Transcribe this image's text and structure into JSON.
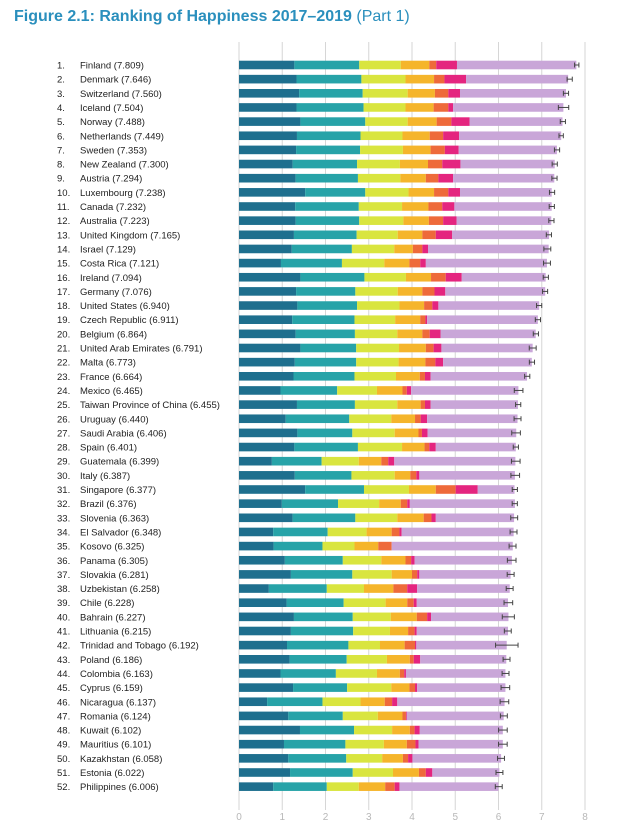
{
  "title": {
    "main": "Figure 2.1: Ranking of Happiness 2017–2019",
    "part": "(Part 1)"
  },
  "colors": {
    "accent": "#2a8fbd",
    "segments": [
      "#1e6f8e",
      "#27a3a8",
      "#d9e53f",
      "#f5b52b",
      "#ee6a3a",
      "#e4257f",
      "#c9a6d8"
    ],
    "gridline": "#d6d6d6",
    "axis_tick": "#b8b8b8",
    "whisker": "#444444",
    "label": "#222222"
  },
  "chart_data": {
    "type": "bar",
    "stacked": true,
    "orientation": "horizontal",
    "title": "Figure 2.1: Ranking of Happiness 2017–2019 (Part 1)",
    "xlim": [
      0,
      8
    ],
    "xticks": [
      "0",
      "1",
      "2",
      "3",
      "4",
      "5",
      "6",
      "7",
      "8"
    ],
    "grid": true,
    "categories": [
      {
        "rank": "1.",
        "name": "Finland (7.809)"
      },
      {
        "rank": "2.",
        "name": "Denmark (7.646)"
      },
      {
        "rank": "3.",
        "name": "Switzerland (7.560)"
      },
      {
        "rank": "4.",
        "name": "Iceland (7.504)"
      },
      {
        "rank": "5.",
        "name": "Norway (7.488)"
      },
      {
        "rank": "6.",
        "name": "Netherlands (7.449)"
      },
      {
        "rank": "7.",
        "name": "Sweden (7.353)"
      },
      {
        "rank": "8.",
        "name": "New Zealand (7.300)"
      },
      {
        "rank": "9.",
        "name": "Austria (7.294)"
      },
      {
        "rank": "10.",
        "name": "Luxembourg (7.238)"
      },
      {
        "rank": "11.",
        "name": "Canada (7.232)"
      },
      {
        "rank": "12.",
        "name": "Australia (7.223)"
      },
      {
        "rank": "13.",
        "name": "United Kingdom (7.165)"
      },
      {
        "rank": "14.",
        "name": "Israel (7.129)"
      },
      {
        "rank": "15.",
        "name": "Costa Rica (7.121)"
      },
      {
        "rank": "16.",
        "name": "Ireland (7.094)"
      },
      {
        "rank": "17.",
        "name": "Germany (7.076)"
      },
      {
        "rank": "18.",
        "name": "United States (6.940)"
      },
      {
        "rank": "19.",
        "name": "Czech Republic (6.911)"
      },
      {
        "rank": "20.",
        "name": "Belgium (6.864)"
      },
      {
        "rank": "21.",
        "name": "United Arab Emirates (6.791)"
      },
      {
        "rank": "22.",
        "name": "Malta (6.773)"
      },
      {
        "rank": "23.",
        "name": "France (6.664)"
      },
      {
        "rank": "24.",
        "name": "Mexico (6.465)"
      },
      {
        "rank": "25.",
        "name": "Taiwan Province of China (6.455)"
      },
      {
        "rank": "26.",
        "name": "Uruguay (6.440)"
      },
      {
        "rank": "27.",
        "name": "Saudi Arabia (6.406)"
      },
      {
        "rank": "28.",
        "name": "Spain (6.401)"
      },
      {
        "rank": "29.",
        "name": "Guatemala (6.399)"
      },
      {
        "rank": "30.",
        "name": "Italy (6.387)"
      },
      {
        "rank": "31.",
        "name": "Singapore (6.377)"
      },
      {
        "rank": "32.",
        "name": "Brazil (6.376)"
      },
      {
        "rank": "33.",
        "name": "Slovenia (6.363)"
      },
      {
        "rank": "34.",
        "name": "El Salvador (6.348)"
      },
      {
        "rank": "35.",
        "name": "Kosovo (6.325)"
      },
      {
        "rank": "36.",
        "name": "Panama (6.305)"
      },
      {
        "rank": "37.",
        "name": "Slovakia (6.281)"
      },
      {
        "rank": "38.",
        "name": "Uzbekistan (6.258)"
      },
      {
        "rank": "39.",
        "name": "Chile (6.228)"
      },
      {
        "rank": "40.",
        "name": "Bahrain (6.227)"
      },
      {
        "rank": "41.",
        "name": "Lithuania (6.215)"
      },
      {
        "rank": "42.",
        "name": "Trinidad and Tobago (6.192)"
      },
      {
        "rank": "43.",
        "name": "Poland (6.186)"
      },
      {
        "rank": "44.",
        "name": "Colombia (6.163)"
      },
      {
        "rank": "45.",
        "name": "Cyprus (6.159)"
      },
      {
        "rank": "46.",
        "name": "Nicaragua (6.137)"
      },
      {
        "rank": "47.",
        "name": "Romania (6.124)"
      },
      {
        "rank": "48.",
        "name": "Kuwait (6.102)"
      },
      {
        "rank": "49.",
        "name": "Mauritius (6.101)"
      },
      {
        "rank": "50.",
        "name": "Kazakhstan (6.058)"
      },
      {
        "rank": "51.",
        "name": "Estonia (6.022)"
      },
      {
        "rank": "52.",
        "name": "Philippines (6.006)"
      }
    ],
    "scores": [
      7.809,
      7.646,
      7.56,
      7.504,
      7.488,
      7.449,
      7.353,
      7.3,
      7.294,
      7.238,
      7.232,
      7.223,
      7.165,
      7.129,
      7.121,
      7.094,
      7.076,
      6.94,
      6.911,
      6.864,
      6.791,
      6.773,
      6.664,
      6.465,
      6.455,
      6.44,
      6.406,
      6.401,
      6.399,
      6.387,
      6.377,
      6.376,
      6.363,
      6.348,
      6.325,
      6.305,
      6.281,
      6.258,
      6.228,
      6.227,
      6.215,
      6.192,
      6.186,
      6.163,
      6.159,
      6.137,
      6.124,
      6.102,
      6.101,
      6.058,
      6.022,
      6.006
    ],
    "segments": [
      [
        1.28,
        1.5,
        0.96,
        0.66,
        0.16,
        0.48,
        2.76
      ],
      [
        1.33,
        1.5,
        1.02,
        0.66,
        0.24,
        0.5,
        2.36
      ],
      [
        1.39,
        1.47,
        1.04,
        0.63,
        0.31,
        0.27,
        2.45
      ],
      [
        1.33,
        1.55,
        0.97,
        0.65,
        0.34,
        0.11,
        2.55
      ],
      [
        1.42,
        1.5,
        0.98,
        0.67,
        0.34,
        0.42,
        2.15
      ],
      [
        1.34,
        1.47,
        0.97,
        0.63,
        0.31,
        0.37,
        2.36
      ],
      [
        1.32,
        1.48,
        0.99,
        0.64,
        0.33,
        0.32,
        2.27
      ],
      [
        1.24,
        1.49,
        0.99,
        0.65,
        0.33,
        0.42,
        2.18
      ],
      [
        1.31,
        1.44,
        0.98,
        0.59,
        0.29,
        0.34,
        2.34
      ],
      [
        1.53,
        1.39,
        1.0,
        0.59,
        0.33,
        0.27,
        2.12
      ],
      [
        1.3,
        1.47,
        1.0,
        0.61,
        0.32,
        0.28,
        2.25
      ],
      [
        1.31,
        1.47,
        1.02,
        0.59,
        0.33,
        0.31,
        2.19
      ],
      [
        1.27,
        1.45,
        0.95,
        0.57,
        0.31,
        0.38,
        2.24
      ],
      [
        1.22,
        1.39,
        0.98,
        0.43,
        0.22,
        0.13,
        2.79
      ],
      [
        0.97,
        1.41,
        0.98,
        0.58,
        0.25,
        0.13,
        2.8
      ],
      [
        1.42,
        1.48,
        0.96,
        0.58,
        0.34,
        0.37,
        1.94
      ],
      [
        1.32,
        1.37,
        0.98,
        0.57,
        0.28,
        0.25,
        2.31
      ],
      [
        1.35,
        1.38,
        0.98,
        0.57,
        0.19,
        0.14,
        2.33
      ],
      [
        1.23,
        1.44,
        0.94,
        0.58,
        0.12,
        0.04,
        2.56
      ],
      [
        1.31,
        1.37,
        0.98,
        0.58,
        0.17,
        0.25,
        2.2
      ],
      [
        1.42,
        1.29,
        0.99,
        0.62,
        0.18,
        0.18,
        2.11
      ],
      [
        1.29,
        1.42,
        0.98,
        0.62,
        0.23,
        0.18,
        2.05
      ],
      [
        1.26,
        1.41,
        0.96,
        0.55,
        0.12,
        0.13,
        2.23
      ],
      [
        0.96,
        1.31,
        0.92,
        0.59,
        0.1,
        0.1,
        2.48
      ],
      [
        1.34,
        1.34,
        0.98,
        0.54,
        0.1,
        0.13,
        2.02
      ],
      [
        1.08,
        1.47,
        0.97,
        0.55,
        0.13,
        0.15,
        2.09
      ],
      [
        1.35,
        1.27,
        0.98,
        0.55,
        0.08,
        0.13,
        2.05
      ],
      [
        1.28,
        1.47,
        1.02,
        0.52,
        0.11,
        0.15,
        1.85
      ],
      [
        0.76,
        1.15,
        0.86,
        0.52,
        0.16,
        0.14,
        2.8
      ],
      [
        1.29,
        1.31,
        1.0,
        0.36,
        0.14,
        0.07,
        2.21
      ],
      [
        1.53,
        1.36,
        1.04,
        0.62,
        0.46,
        0.51,
        0.85
      ],
      [
        0.99,
        1.3,
        0.95,
        0.5,
        0.15,
        0.06,
        2.43
      ],
      [
        1.24,
        1.45,
        0.97,
        0.61,
        0.18,
        0.1,
        1.81
      ],
      [
        0.79,
        1.26,
        0.9,
        0.58,
        0.18,
        0.05,
        2.59
      ],
      [
        0.8,
        1.13,
        0.74,
        0.55,
        0.31,
        0.0,
        2.8
      ],
      [
        1.06,
        1.34,
        0.89,
        0.56,
        0.13,
        0.08,
        2.25
      ],
      [
        1.2,
        1.42,
        0.91,
        0.47,
        0.12,
        0.05,
        2.11
      ],
      [
        0.69,
        1.34,
        0.86,
        0.68,
        0.32,
        0.23,
        2.14
      ],
      [
        1.1,
        1.32,
        0.97,
        0.5,
        0.15,
        0.07,
        2.11
      ],
      [
        1.27,
        1.36,
        0.88,
        0.6,
        0.24,
        0.09,
        1.79
      ],
      [
        1.2,
        1.44,
        0.85,
        0.42,
        0.15,
        0.05,
        2.11
      ],
      [
        1.11,
        1.42,
        0.73,
        0.57,
        0.24,
        0.03,
        2.09
      ],
      [
        1.17,
        1.32,
        0.93,
        0.53,
        0.09,
        0.15,
        1.99
      ],
      [
        0.96,
        1.28,
        0.95,
        0.53,
        0.1,
        0.04,
        2.3
      ],
      [
        1.25,
        1.25,
        1.02,
        0.42,
        0.13,
        0.05,
        2.04
      ],
      [
        0.65,
        1.28,
        0.88,
        0.56,
        0.17,
        0.12,
        2.48
      ],
      [
        1.14,
        1.26,
        0.81,
        0.57,
        0.08,
        0.02,
        2.24
      ],
      [
        1.41,
        1.25,
        0.88,
        0.41,
        0.11,
        0.12,
        1.92
      ],
      [
        1.04,
        1.42,
        0.89,
        0.53,
        0.2,
        0.07,
        1.95
      ],
      [
        1.14,
        1.34,
        0.83,
        0.48,
        0.12,
        0.1,
        2.05
      ],
      [
        1.18,
        1.45,
        0.93,
        0.6,
        0.16,
        0.15,
        1.55
      ],
      [
        0.79,
        1.24,
        0.74,
        0.61,
        0.22,
        0.11,
        2.29
      ]
    ],
    "error_margin": [
      0.05,
      0.06,
      0.06,
      0.12,
      0.06,
      0.05,
      0.06,
      0.06,
      0.06,
      0.06,
      0.06,
      0.06,
      0.06,
      0.08,
      0.08,
      0.06,
      0.06,
      0.06,
      0.06,
      0.06,
      0.08,
      0.06,
      0.06,
      0.1,
      0.06,
      0.08,
      0.1,
      0.06,
      0.1,
      0.1,
      0.06,
      0.06,
      0.08,
      0.08,
      0.08,
      0.1,
      0.08,
      0.08,
      0.1,
      0.14,
      0.08,
      0.26,
      0.08,
      0.08,
      0.1,
      0.1,
      0.08,
      0.1,
      0.1,
      0.08,
      0.08,
      0.08
    ]
  }
}
